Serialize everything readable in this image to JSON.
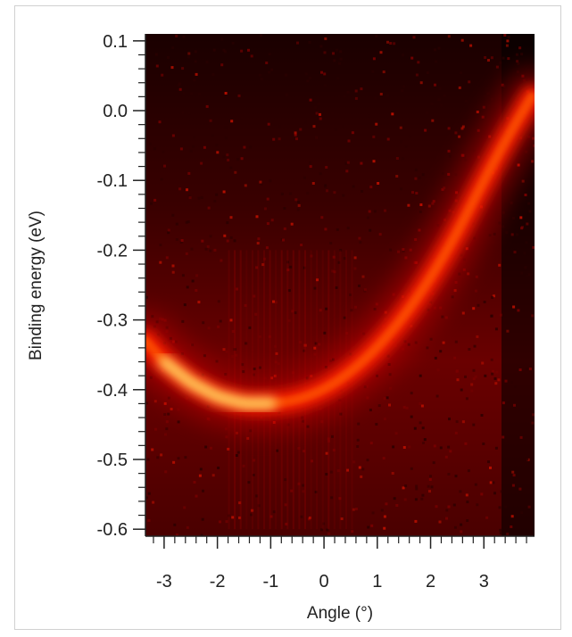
{
  "chart_data": {
    "type": "heatmap",
    "title": "",
    "xlabel": "Angle (°)",
    "ylabel": "Binding energy (eV)",
    "xlim": [
      -3.35,
      3.95
    ],
    "ylim": [
      -0.61,
      0.11
    ],
    "xticks": [
      {
        "value": -3,
        "label": "-3"
      },
      {
        "value": -2,
        "label": "-2"
      },
      {
        "value": -1,
        "label": "-1"
      },
      {
        "value": 0,
        "label": "0"
      },
      {
        "value": 1,
        "label": "1"
      },
      {
        "value": 2,
        "label": "2"
      },
      {
        "value": 3,
        "label": "3"
      }
    ],
    "yticks": [
      {
        "value": 0.1,
        "label": "0.1"
      },
      {
        "value": 0.0,
        "label": "0.0"
      },
      {
        "value": -0.1,
        "label": "-0.1"
      },
      {
        "value": -0.2,
        "label": "-0.2"
      },
      {
        "value": -0.3,
        "label": "-0.3"
      },
      {
        "value": -0.4,
        "label": "-0.4"
      },
      {
        "value": -0.5,
        "label": "-0.5"
      },
      {
        "value": -0.6,
        "label": "-0.6"
      }
    ],
    "band": {
      "description_points": [
        {
          "x": -3.35,
          "y": -0.33
        },
        {
          "x": -3.0,
          "y": -0.36
        },
        {
          "x": -2.5,
          "y": -0.39
        },
        {
          "x": -2.0,
          "y": -0.41
        },
        {
          "x": -1.5,
          "y": -0.42
        },
        {
          "x": -1.0,
          "y": -0.42
        },
        {
          "x": -0.5,
          "y": -0.415
        },
        {
          "x": 0.0,
          "y": -0.4
        },
        {
          "x": 0.5,
          "y": -0.375
        },
        {
          "x": 1.0,
          "y": -0.34
        },
        {
          "x": 1.5,
          "y": -0.295
        },
        {
          "x": 2.0,
          "y": -0.24
        },
        {
          "x": 2.5,
          "y": -0.175
        },
        {
          "x": 3.0,
          "y": -0.1
        },
        {
          "x": 3.5,
          "y": -0.03
        },
        {
          "x": 3.9,
          "y": 0.02
        }
      ],
      "intensity_peak_x": [
        -2.6,
        -1.2
      ]
    },
    "colormap": [
      "#000000",
      "#5a0000",
      "#b00000",
      "#ff1a00",
      "#ff7a00",
      "#ffe070"
    ],
    "grid": false,
    "legend": "none"
  }
}
